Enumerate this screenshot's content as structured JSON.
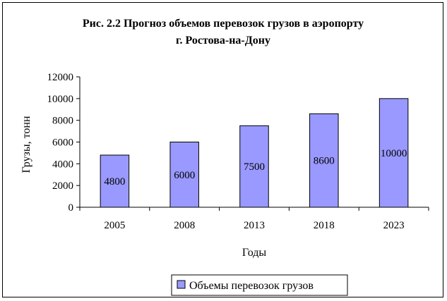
{
  "chart_data": {
    "type": "bar",
    "title_lines": [
      "Рис. 2.2 Прогноз объемов перевозок грузов в аэропорту",
      "г. Ростова-на-Дону"
    ],
    "xlabel": "Годы",
    "ylabel": "Грузы, тонн",
    "categories": [
      "2005",
      "2008",
      "2013",
      "2018",
      "2023"
    ],
    "series": [
      {
        "name": "Объемы перевозок грузов",
        "values": [
          4800,
          6000,
          7500,
          8600,
          10000
        ]
      }
    ],
    "ylim": [
      0,
      12000
    ],
    "yticks": [
      0,
      2000,
      4000,
      6000,
      8000,
      10000,
      12000
    ],
    "data_labels": true,
    "grid": false,
    "legend_position": "bottom",
    "colors": {
      "bar_fill": "#9999ff",
      "bar_stroke": "#000000"
    }
  }
}
